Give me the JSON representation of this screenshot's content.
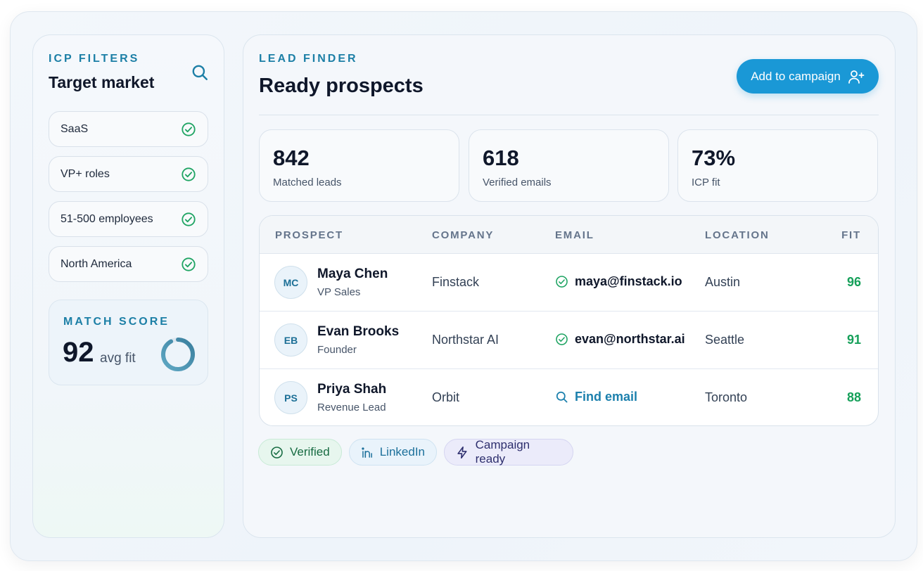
{
  "colors": {
    "accent": "#1a98d6",
    "eyebrow": "#1c7fa6",
    "fit": "#16a05a",
    "check": "#1fa463"
  },
  "sidebar": {
    "eyebrow": "ICP FILTERS",
    "title": "Target market",
    "search_icon": "search-icon",
    "filters": [
      {
        "label": "SaaS",
        "icon": "check-circle-icon"
      },
      {
        "label": "VP+ roles",
        "icon": "check-circle-icon"
      },
      {
        "label": "51-500 employees",
        "icon": "check-circle-icon"
      },
      {
        "label": "North America",
        "icon": "check-circle-icon"
      }
    ],
    "match": {
      "eyebrow": "MATCH SCORE",
      "value": "92",
      "unit": "avg fit",
      "ring_fraction": 0.92
    }
  },
  "main": {
    "eyebrow": "LEAD FINDER",
    "title": "Ready prospects",
    "cta": {
      "label": "Add to campaign",
      "icon": "user-plus-icon"
    },
    "stats": [
      {
        "value": "842",
        "label": "Matched leads"
      },
      {
        "value": "618",
        "label": "Verified emails"
      },
      {
        "value": "73%",
        "label": "ICP fit"
      }
    ],
    "table": {
      "columns": [
        "PROSPECT",
        "COMPANY",
        "EMAIL",
        "LOCATION",
        "FIT"
      ],
      "rows": [
        {
          "initials": "MC",
          "name": "Maya Chen",
          "role": "VP Sales",
          "company": "Finstack",
          "email": "maya@finstack.io",
          "email_status": "verified",
          "location": "Austin",
          "fit": "96"
        },
        {
          "initials": "EB",
          "name": "Evan Brooks",
          "role": "Founder",
          "company": "Northstar AI",
          "email": "evan@northstar.ai",
          "email_status": "verified",
          "location": "Seattle",
          "fit": "91"
        },
        {
          "initials": "PS",
          "name": "Priya Shah",
          "role": "Revenue Lead",
          "company": "Orbit",
          "email": "Find email",
          "email_status": "find",
          "location": "Toronto",
          "fit": "88"
        }
      ]
    },
    "tags": [
      {
        "label": "Verified",
        "icon": "check-circle-icon"
      },
      {
        "label": "LinkedIn",
        "icon": "linkedin-icon"
      },
      {
        "label": "Campaign ready",
        "icon": "lightning-icon"
      }
    ]
  }
}
